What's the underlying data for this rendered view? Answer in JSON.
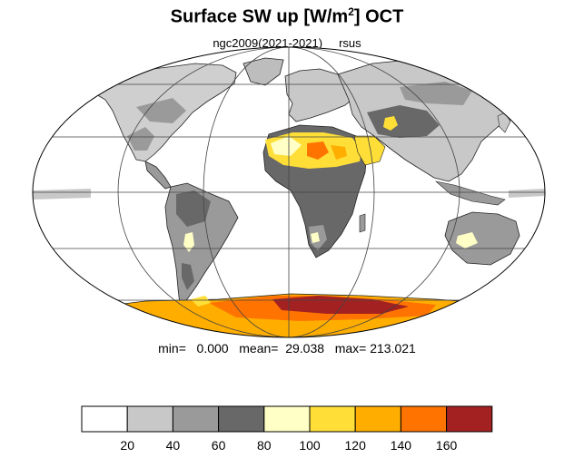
{
  "title": {
    "prefix": "Surface SW up [W/m",
    "sup": "2",
    "suffix": "]  OCT"
  },
  "subtitle": "ngc2009(2021-2021)     rsus",
  "stats": "min=   0.000   mean=  29.038   max= 213.021",
  "legend": {
    "colors": [
      "#ffffff",
      "#c8c8c8",
      "#9a9a9a",
      "#686868",
      "#ffffc6",
      "#ffdf37",
      "#ffae00",
      "#ff7400",
      "#a32121"
    ],
    "tick_labels": [
      "20",
      "40",
      "60",
      "80",
      "100",
      "120",
      "140",
      "160"
    ]
  }
}
